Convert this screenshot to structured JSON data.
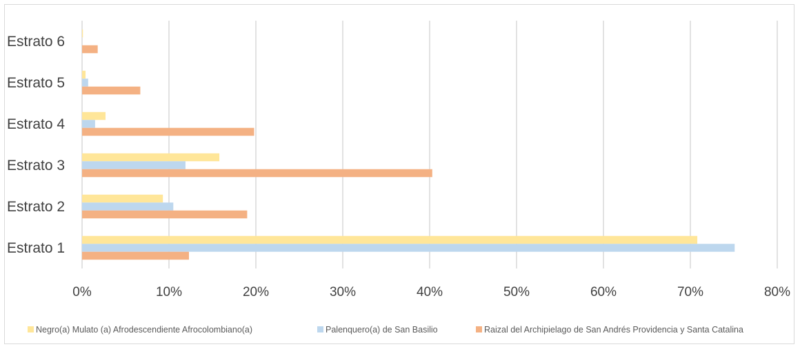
{
  "chart_data": {
    "type": "bar",
    "orientation": "horizontal",
    "categories": [
      "Estrato 1",
      "Estrato 2",
      "Estrato 3",
      "Estrato 4",
      "Estrato 5",
      "Estrato 6"
    ],
    "series": [
      {
        "name": "Negro(a) Mulato (a) Afrodescendiente Afrocolombiano(a)",
        "color": "#ffe699",
        "values": [
          70.8,
          9.3,
          15.8,
          2.7,
          0.4,
          0.1
        ]
      },
      {
        "name": "Palenquero(a) de San Basilio",
        "color": "#bdd7ee",
        "values": [
          75.1,
          10.5,
          11.9,
          1.5,
          0.7,
          0.0
        ]
      },
      {
        "name": "Raizal del Archipielago de San Andrés Providencia y Santa Catalina",
        "color": "#f4b183",
        "values": [
          12.3,
          19.0,
          40.3,
          19.8,
          6.7,
          1.8
        ]
      }
    ],
    "x_ticks": [
      "0%",
      "10%",
      "20%",
      "30%",
      "40%",
      "50%",
      "60%",
      "70%",
      "80%"
    ],
    "xlim": [
      0,
      80
    ],
    "grid": true,
    "legend_position": "bottom",
    "title": "",
    "xlabel": "",
    "ylabel": ""
  }
}
